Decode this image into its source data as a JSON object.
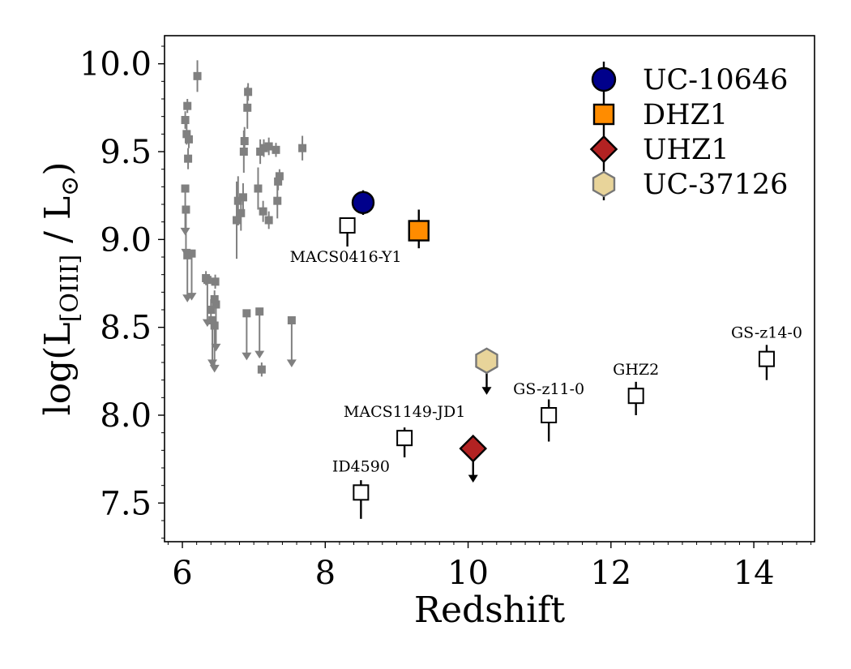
{
  "chart_data": {
    "type": "scatter",
    "xlabel": "Redshift",
    "ylabel": {
      "prefix": "log(L",
      "subscript": "[OIII]",
      "suffix": " / L",
      "sun_symbol": "⊙",
      "close": ")"
    },
    "xlim": [
      5.75,
      14.85
    ],
    "ylim": [
      7.28,
      10.16
    ],
    "xticks": [
      6,
      8,
      10,
      12,
      14
    ],
    "xtick_labels": [
      "6",
      "8",
      "10",
      "12",
      "14"
    ],
    "yticks": [
      7.5,
      8.0,
      8.5,
      9.0,
      9.5,
      10.0
    ],
    "ytick_labels": [
      "7.5",
      "8.0",
      "8.5",
      "9.0",
      "9.5",
      "10.0"
    ],
    "grid": false,
    "legend_position": "top-right",
    "comparison_sample": {
      "color": "#808080",
      "detections": [
        {
          "x": 6.04,
          "y": 9.68,
          "yerr": 0.05
        },
        {
          "x": 6.07,
          "y": 9.76,
          "yerr": 0.04
        },
        {
          "x": 6.06,
          "y": 9.6,
          "yerr": 0.06
        },
        {
          "x": 6.09,
          "y": 9.57,
          "yerr": 0.05
        },
        {
          "x": 6.08,
          "y": 9.46,
          "yerr": 0.06
        },
        {
          "x": 6.21,
          "y": 9.93,
          "yerr": 0.09
        },
        {
          "x": 6.33,
          "y": 8.78,
          "yerr": 0.04
        },
        {
          "x": 6.4,
          "y": 8.6,
          "yerr": 0.06
        },
        {
          "x": 6.45,
          "y": 8.66,
          "yerr": 0.05
        },
        {
          "x": 6.46,
          "y": 8.76,
          "yerr": 0.04
        },
        {
          "x": 6.76,
          "y": 9.11,
          "yerr": 0.22
        },
        {
          "x": 6.78,
          "y": 9.22,
          "yerr": 0.14
        },
        {
          "x": 6.82,
          "y": 9.15,
          "yerr": 0.1
        },
        {
          "x": 6.85,
          "y": 9.24,
          "yerr": 0.08
        },
        {
          "x": 6.86,
          "y": 9.5,
          "yerr": 0.12
        },
        {
          "x": 6.87,
          "y": 9.56,
          "yerr": 0.08
        },
        {
          "x": 6.91,
          "y": 9.75,
          "yerr": 0.12
        },
        {
          "x": 6.92,
          "y": 9.84,
          "yerr": 0.05
        },
        {
          "x": 7.06,
          "y": 9.29,
          "yerr": 0.12
        },
        {
          "x": 7.09,
          "y": 9.5,
          "yerr": 0.07
        },
        {
          "x": 7.13,
          "y": 9.16,
          "yerr": 0.06
        },
        {
          "x": 7.14,
          "y": 9.52,
          "yerr": 0.05
        },
        {
          "x": 7.21,
          "y": 9.11,
          "yerr": 0.05
        },
        {
          "x": 7.21,
          "y": 9.53,
          "yerr": 0.05
        },
        {
          "x": 7.31,
          "y": 9.51,
          "yerr": 0.04
        },
        {
          "x": 7.34,
          "y": 9.33,
          "yerr": 0.05
        },
        {
          "x": 7.33,
          "y": 9.22,
          "yerr": 0.1
        },
        {
          "x": 7.36,
          "y": 9.36,
          "yerr": 0.04
        },
        {
          "x": 7.11,
          "y": 8.26,
          "yerr": 0.04
        },
        {
          "x": 7.68,
          "y": 9.52,
          "yerr": 0.07
        }
      ],
      "upper_limits": [
        {
          "x": 6.04,
          "y": 9.29
        },
        {
          "x": 6.05,
          "y": 9.17
        },
        {
          "x": 6.07,
          "y": 8.91
        },
        {
          "x": 6.13,
          "y": 8.92
        },
        {
          "x": 6.35,
          "y": 8.77
        },
        {
          "x": 6.42,
          "y": 8.54
        },
        {
          "x": 6.45,
          "y": 8.51
        },
        {
          "x": 6.47,
          "y": 8.63
        },
        {
          "x": 6.9,
          "y": 8.58
        },
        {
          "x": 7.08,
          "y": 8.59
        },
        {
          "x": 7.53,
          "y": 8.54
        }
      ]
    },
    "literature_points": [
      {
        "label": "MACS0416-Y1",
        "x": 8.31,
        "y": 9.08,
        "yerr_low": 0.12,
        "yerr_high": 0.02,
        "label_pos": "below"
      },
      {
        "label": "ID4590",
        "x": 8.5,
        "y": 7.56,
        "yerr_low": 0.15,
        "yerr_high": 0.07,
        "label_pos": "above"
      },
      {
        "label": "MACS1149-JD1",
        "x": 9.11,
        "y": 7.87,
        "yerr_low": 0.11,
        "yerr_high": 0.06,
        "label_pos": "above"
      },
      {
        "label": "GS-z11-0",
        "x": 11.13,
        "y": 8.0,
        "yerr_low": 0.15,
        "yerr_high": 0.09,
        "label_pos": "above"
      },
      {
        "label": "GHZ2",
        "x": 12.35,
        "y": 8.11,
        "yerr_low": 0.11,
        "yerr_high": 0.08,
        "label_pos": "above"
      },
      {
        "label": "GS-z14-0",
        "x": 14.18,
        "y": 8.32,
        "yerr_low": 0.12,
        "yerr_high": 0.08,
        "label_pos": "above"
      }
    ],
    "series": [
      {
        "name": "UC-10646",
        "marker": "circle",
        "color": "#00008b",
        "x": 8.53,
        "y": 9.21,
        "yerr_low": 0.07,
        "yerr_high": 0.07,
        "upper_limit": false
      },
      {
        "name": "DHZ1",
        "marker": "square",
        "color": "#ff8c00",
        "x": 9.31,
        "y": 9.05,
        "yerr_low": 0.1,
        "yerr_high": 0.12,
        "upper_limit": false
      },
      {
        "name": "UHZ1",
        "marker": "diamond",
        "color": "#b22222",
        "x": 10.07,
        "y": 7.81,
        "upper_limit": true
      },
      {
        "name": "UC-37126",
        "marker": "hexagon",
        "color": "#e8d49a",
        "x": 10.26,
        "y": 8.31,
        "upper_limit": true
      }
    ]
  }
}
